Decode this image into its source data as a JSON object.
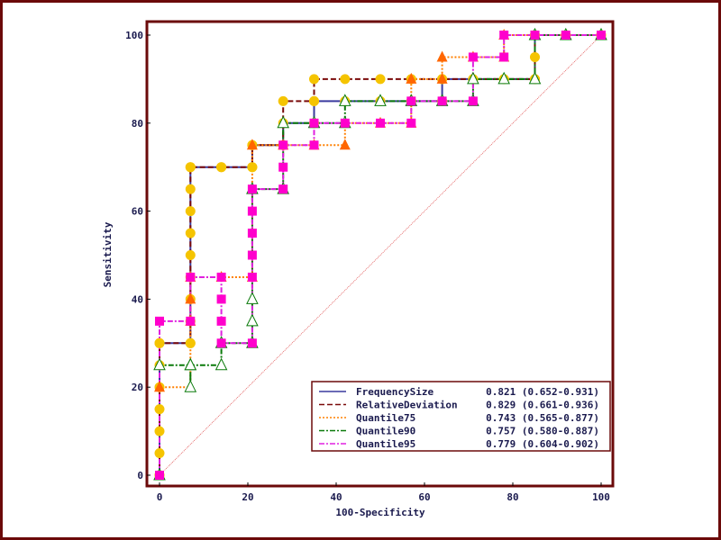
{
  "chart_data": {
    "type": "line",
    "title": "",
    "xlabel": "100-Specificity",
    "ylabel": "Sensitivity",
    "xlim": [
      0,
      100
    ],
    "ylim": [
      0,
      100
    ],
    "x_ticks": [
      "0",
      "20",
      "40",
      "60",
      "80",
      "100"
    ],
    "y_ticks": [
      "0",
      "20",
      "40",
      "60",
      "80",
      "100"
    ],
    "grid": false,
    "legend_position": "bottom-right",
    "reference_line": {
      "from": [
        0,
        0
      ],
      "to": [
        100,
        100
      ],
      "color": "#e05050"
    },
    "colors": {
      "frame": "#6b0a0a",
      "axis": "#000000",
      "text": "#1a1a4e"
    },
    "series": [
      {
        "name": "FrequencySize",
        "auc": "0.821 (0.652-0.931)",
        "color": "#3a3a9e",
        "dash": "",
        "marker": "circle",
        "marker_color": "#f5c400",
        "points": [
          [
            0,
            0
          ],
          [
            0,
            30
          ],
          [
            7,
            30
          ],
          [
            7,
            70
          ],
          [
            14,
            70
          ],
          [
            21,
            70
          ],
          [
            21,
            75
          ],
          [
            28,
            75
          ],
          [
            28,
            80
          ],
          [
            35,
            80
          ],
          [
            35,
            85
          ],
          [
            42,
            85
          ],
          [
            50,
            85
          ],
          [
            57,
            85
          ],
          [
            64,
            85
          ],
          [
            64,
            90
          ],
          [
            71,
            90
          ],
          [
            78,
            90
          ],
          [
            85,
            90
          ],
          [
            85,
            100
          ],
          [
            92,
            100
          ],
          [
            100,
            100
          ]
        ]
      },
      {
        "name": "RelativeDeviation",
        "auc": "0.829 (0.661-0.936)",
        "color": "#7a0a0a",
        "dash": "6,3",
        "marker": "circle",
        "marker_color": "#f5c400",
        "points": [
          [
            0,
            0
          ],
          [
            0,
            5
          ],
          [
            0,
            10
          ],
          [
            0,
            15
          ],
          [
            0,
            20
          ],
          [
            0,
            25
          ],
          [
            0,
            30
          ],
          [
            7,
            30
          ],
          [
            7,
            35
          ],
          [
            7,
            40
          ],
          [
            7,
            45
          ],
          [
            7,
            50
          ],
          [
            7,
            55
          ],
          [
            7,
            60
          ],
          [
            7,
            65
          ],
          [
            7,
            70
          ],
          [
            14,
            70
          ],
          [
            21,
            70
          ],
          [
            21,
            75
          ],
          [
            28,
            75
          ],
          [
            28,
            85
          ],
          [
            35,
            85
          ],
          [
            35,
            90
          ],
          [
            42,
            90
          ],
          [
            50,
            90
          ],
          [
            57,
            90
          ],
          [
            64,
            90
          ],
          [
            71,
            90
          ],
          [
            78,
            90
          ],
          [
            85,
            90
          ],
          [
            85,
            95
          ],
          [
            85,
            100
          ],
          [
            92,
            100
          ],
          [
            100,
            100
          ]
        ]
      },
      {
        "name": "Quantile75",
        "auc": "0.743 (0.565-0.877)",
        "color": "#ff8000",
        "dash": "2,2",
        "marker": "triangle",
        "marker_color": "#ff6600",
        "points": [
          [
            0,
            0
          ],
          [
            0,
            20
          ],
          [
            7,
            20
          ],
          [
            7,
            35
          ],
          [
            7,
            40
          ],
          [
            7,
            45
          ],
          [
            14,
            45
          ],
          [
            21,
            45
          ],
          [
            21,
            75
          ],
          [
            28,
            75
          ],
          [
            35,
            75
          ],
          [
            42,
            75
          ],
          [
            42,
            80
          ],
          [
            50,
            80
          ],
          [
            57,
            80
          ],
          [
            57,
            90
          ],
          [
            64,
            90
          ],
          [
            64,
            95
          ],
          [
            71,
            95
          ],
          [
            78,
            95
          ],
          [
            78,
            100
          ],
          [
            85,
            100
          ],
          [
            92,
            100
          ],
          [
            100,
            100
          ]
        ]
      },
      {
        "name": "Quantile90",
        "auc": "0.757 (0.580-0.887)",
        "color": "#0a7a0a",
        "dash": "6,2,2,2",
        "marker": "triangle-open",
        "marker_color": "#0a7a0a",
        "points": [
          [
            0,
            0
          ],
          [
            0,
            25
          ],
          [
            7,
            25
          ],
          [
            7,
            20
          ],
          [
            7,
            25
          ],
          [
            14,
            25
          ],
          [
            14,
            30
          ],
          [
            21,
            30
          ],
          [
            21,
            35
          ],
          [
            21,
            40
          ],
          [
            21,
            65
          ],
          [
            28,
            65
          ],
          [
            28,
            80
          ],
          [
            35,
            80
          ],
          [
            42,
            80
          ],
          [
            42,
            85
          ],
          [
            50,
            85
          ],
          [
            57,
            85
          ],
          [
            64,
            85
          ],
          [
            71,
            85
          ],
          [
            71,
            90
          ],
          [
            78,
            90
          ],
          [
            85,
            90
          ],
          [
            85,
            100
          ],
          [
            92,
            100
          ],
          [
            100,
            100
          ]
        ]
      },
      {
        "name": "Quantile95",
        "auc": "0.779 (0.604-0.902)",
        "color": "#e020e0",
        "dash": "6,2,2,2",
        "marker": "square",
        "marker_color": "#ff00cc",
        "points": [
          [
            0,
            0
          ],
          [
            0,
            35
          ],
          [
            7,
            35
          ],
          [
            7,
            45
          ],
          [
            14,
            45
          ],
          [
            14,
            40
          ],
          [
            14,
            35
          ],
          [
            14,
            30
          ],
          [
            21,
            30
          ],
          [
            21,
            45
          ],
          [
            21,
            50
          ],
          [
            21,
            55
          ],
          [
            21,
            60
          ],
          [
            21,
            65
          ],
          [
            28,
            65
          ],
          [
            28,
            70
          ],
          [
            28,
            75
          ],
          [
            35,
            75
          ],
          [
            35,
            80
          ],
          [
            42,
            80
          ],
          [
            50,
            80
          ],
          [
            57,
            80
          ],
          [
            57,
            85
          ],
          [
            64,
            85
          ],
          [
            71,
            85
          ],
          [
            71,
            95
          ],
          [
            78,
            95
          ],
          [
            78,
            100
          ],
          [
            85,
            100
          ],
          [
            92,
            100
          ],
          [
            100,
            100
          ]
        ]
      }
    ]
  }
}
